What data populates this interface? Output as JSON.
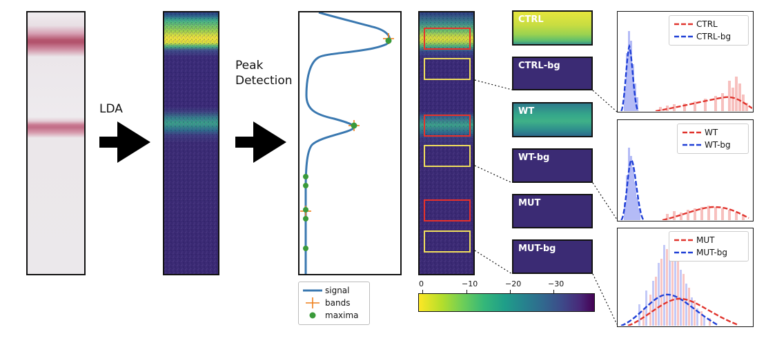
{
  "arrows": {
    "step1_label": "LDA",
    "step2_label_line1": "Peak",
    "step2_label_line2": "Detection"
  },
  "peak_plot": {
    "legend": {
      "signal": "signal",
      "bands": "bands",
      "maxima": "maxima"
    },
    "colors": {
      "signal": "#3a78b0",
      "bands": "#ee7f1a",
      "maxima": "#3a9a3a"
    }
  },
  "colorbar": {
    "ticks": [
      "0",
      "−10",
      "−20",
      "−30"
    ]
  },
  "roi_panels": [
    {
      "label": "CTRL"
    },
    {
      "label": "CTRL-bg"
    },
    {
      "label": "WT"
    },
    {
      "label": "WT-bg"
    },
    {
      "label": "MUT"
    },
    {
      "label": "MUT-bg"
    }
  ],
  "histograms": [
    {
      "legend_fg": "CTRL",
      "legend_bg": "CTRL-bg"
    },
    {
      "legend_fg": "WT",
      "legend_bg": "WT-bg"
    },
    {
      "legend_fg": "MUT",
      "legend_bg": "MUT-bg"
    }
  ],
  "colors": {
    "fg_red": "#e0332c",
    "bg_blue": "#1f3fd6",
    "roi_red": "#e8312a",
    "roi_yellow": "#f1df5c"
  }
}
